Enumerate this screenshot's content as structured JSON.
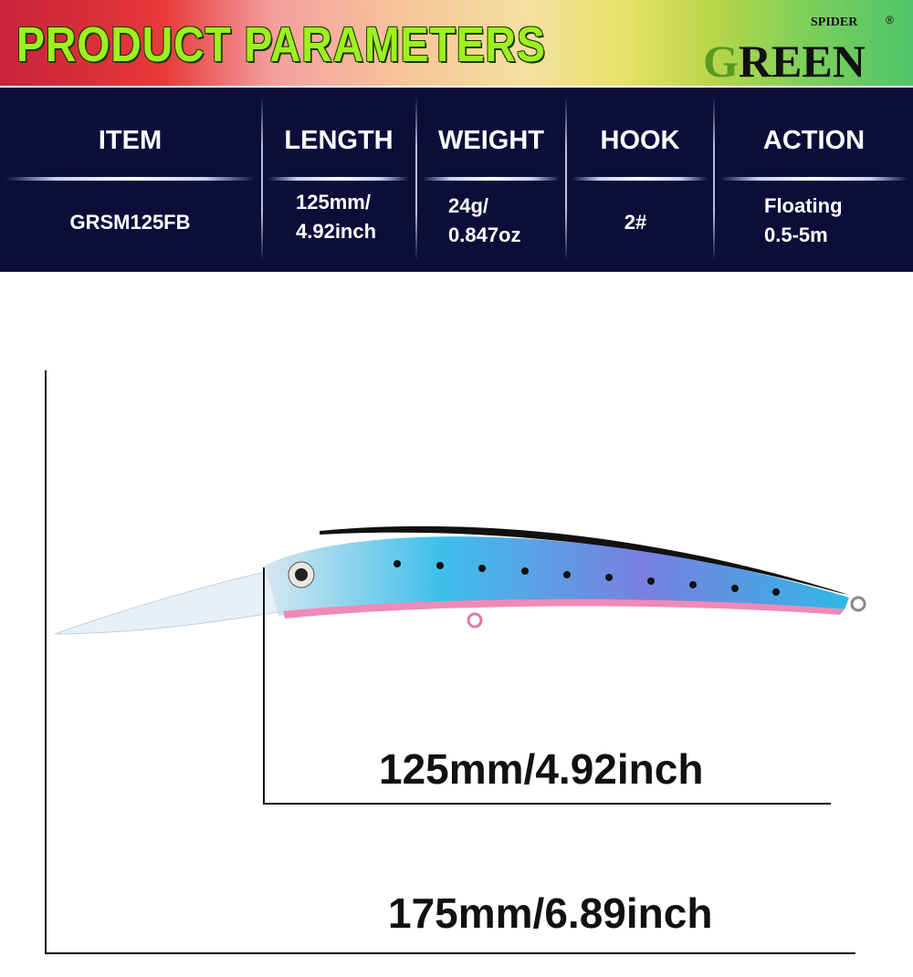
{
  "banner": {
    "title": "PRODUCT PARAMETERS",
    "logo_text": "GREEN SPIDER ®"
  },
  "table": {
    "headers": [
      "ITEM",
      "LENGTH",
      "WEIGHT",
      "HOOK",
      "ACTION"
    ],
    "row": [
      [
        "GRSM125FB"
      ],
      [
        "125mm/",
        "4.92inch"
      ],
      [
        "24g/",
        "0.847oz"
      ],
      [
        "2#"
      ],
      [
        "Floating",
        "0.5-5m"
      ]
    ]
  },
  "dimensions": {
    "body_length": "125mm/4.92inch",
    "total_length": "175mm/6.89inch"
  },
  "colors": {
    "header_bg": "#0d0d3a",
    "title_green": "#9ef020",
    "lure_blue": "#2fb8e6",
    "lure_pink": "#f08ab8"
  }
}
